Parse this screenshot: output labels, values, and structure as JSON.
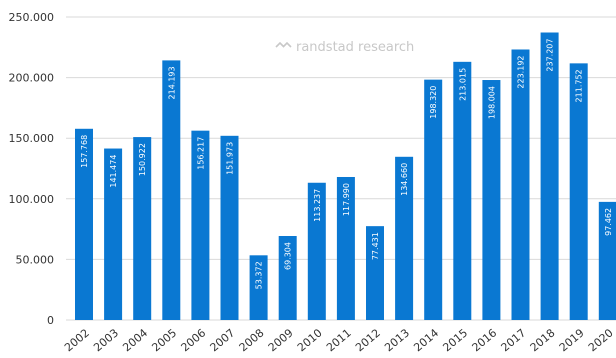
{
  "chart_data": {
    "type": "bar",
    "categories": [
      "2002",
      "2003",
      "2004",
      "2005",
      "2006",
      "2007",
      "2008",
      "2009",
      "2010",
      "2011",
      "2012",
      "2013",
      "2014",
      "2015",
      "2016",
      "2017",
      "2018",
      "2019",
      "2020"
    ],
    "values": [
      157768,
      141474,
      150922,
      214193,
      156217,
      151973,
      53372,
      69304,
      113237,
      117990,
      77431,
      134660,
      198320,
      213015,
      198004,
      223192,
      237207,
      211752,
      97462
    ],
    "data_labels": [
      "157.768",
      "141.474",
      "150.922",
      "214.193",
      "156.217",
      "151.973",
      "53.372",
      "69.304",
      "113.237",
      "117.990",
      "77.431",
      "134.660",
      "198.320",
      "213.015",
      "198.004",
      "223.192",
      "237.207",
      "211.752",
      "97.462"
    ],
    "ylim": [
      0,
      250000
    ],
    "yticks": [
      0,
      50000,
      100000,
      150000,
      200000,
      250000
    ],
    "ytick_labels": [
      "0",
      "50.000",
      "100.000",
      "150.000",
      "200.000",
      "250.000"
    ],
    "title": "",
    "xlabel": "",
    "ylabel": "",
    "grid": true,
    "bar_color": "#0a78d2",
    "watermark": "randstad research"
  }
}
